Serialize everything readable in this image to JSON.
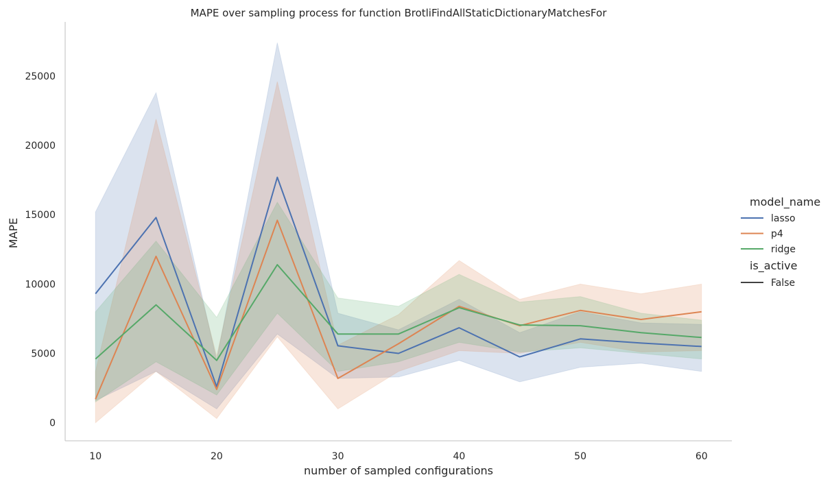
{
  "chart_data": {
    "type": "line",
    "title": "MAPE over sampling process for function BrotliFindAllStaticDictionaryMatchesFor",
    "xlabel": "number of sampled configurations",
    "ylabel": "MAPE",
    "x": [
      10,
      15,
      20,
      25,
      30,
      35,
      40,
      45,
      50,
      55,
      60
    ],
    "xticks": [
      10,
      20,
      30,
      40,
      50,
      60
    ],
    "yticks": [
      0,
      5000,
      10000,
      15000,
      20000,
      25000
    ],
    "xlim": [
      7.5,
      62.5
    ],
    "ylim": [
      -1300,
      28900
    ],
    "grid": false,
    "legend": {
      "placement": "right",
      "title": "model_name",
      "style_title": "is_active",
      "style_entries": [
        {
          "label": "False",
          "color": "#262626"
        }
      ]
    },
    "series": [
      {
        "name": "lasso",
        "color": "#4c72b0",
        "values": [
          9300,
          14800,
          2600,
          17700,
          5550,
          5000,
          6850,
          4750,
          6050,
          5750,
          5500
        ],
        "lower": [
          1600,
          3700,
          1000,
          6400,
          3200,
          3300,
          4500,
          2950,
          4000,
          4300,
          3700
        ],
        "upper": [
          15200,
          23800,
          4500,
          27400,
          7900,
          6700,
          8900,
          6500,
          8000,
          7200,
          7100
        ]
      },
      {
        "name": "p4",
        "color": "#dd8452",
        "values": [
          1700,
          12000,
          2400,
          14600,
          3200,
          5700,
          8400,
          7000,
          8100,
          7450,
          8000
        ],
        "lower": [
          0,
          3700,
          300,
          6200,
          1000,
          3700,
          5200,
          5000,
          5800,
          5100,
          5200
        ],
        "upper": [
          3700,
          21900,
          4800,
          24600,
          5600,
          7800,
          11700,
          8900,
          10000,
          9300,
          10000
        ]
      },
      {
        "name": "ridge",
        "color": "#55a868",
        "values": [
          4600,
          8500,
          4500,
          11400,
          6400,
          6400,
          8300,
          7050,
          7000,
          6500,
          6150
        ],
        "lower": [
          1500,
          4400,
          2000,
          7900,
          3700,
          4400,
          5800,
          5100,
          5400,
          5000,
          4600
        ],
        "upper": [
          8000,
          13100,
          7600,
          15900,
          9000,
          8400,
          10700,
          8700,
          9100,
          7900,
          7400
        ]
      }
    ]
  }
}
